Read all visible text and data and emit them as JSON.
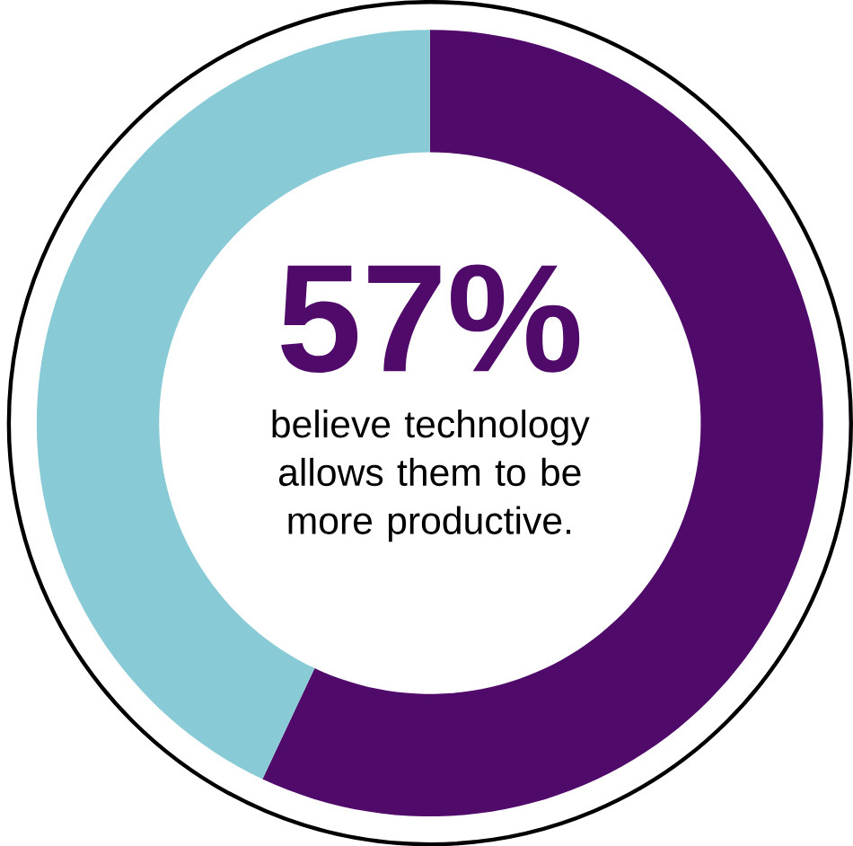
{
  "chart_data": {
    "type": "donut",
    "categories": [
      null,
      null
    ],
    "values": [
      57,
      43
    ],
    "colors": [
      "#4f0a6a",
      "#88cad6"
    ],
    "value_labels": [
      "57%",
      null
    ],
    "annotations": [
      "believe technology allows them to be more productive."
    ]
  }
}
